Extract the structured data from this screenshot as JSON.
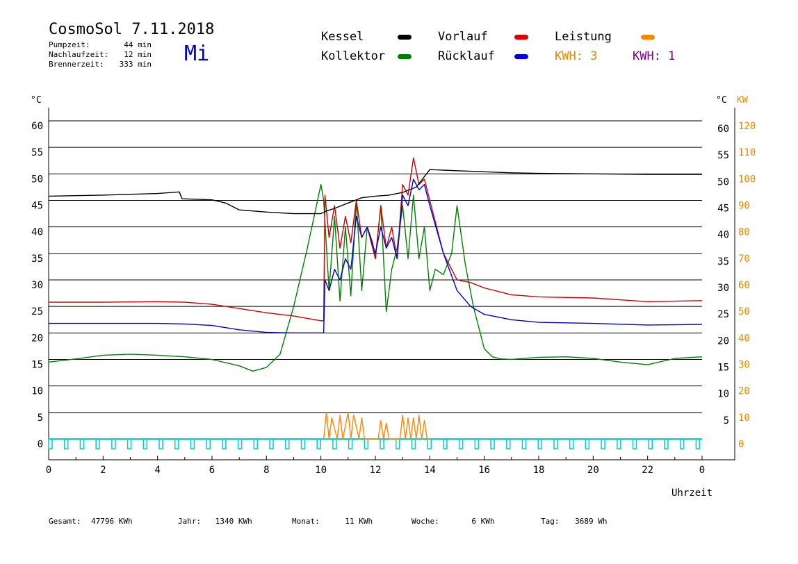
{
  "header": {
    "title": "CosmoSol 7.11.2018",
    "day": "Mi",
    "stats": [
      {
        "label": "Pumpzeit:",
        "value": "44 min"
      },
      {
        "label": "Nachlaufzeit:",
        "value": "12 min"
      },
      {
        "label": "Brennerzeit:",
        "value": "333 min"
      }
    ]
  },
  "legend": [
    {
      "label": "Kessel",
      "color": "#000000"
    },
    {
      "label": "Vorlauf",
      "color": "#dd0000"
    },
    {
      "label": "Leistung",
      "color": "#ff8800"
    },
    {
      "label": "Kollektor",
      "color": "#008000"
    },
    {
      "label": "Rücklauf",
      "color": "#0000dd"
    }
  ],
  "kwh_labels": [
    {
      "label": "KWH: 3",
      "color": "#e08a00"
    },
    {
      "label": "KWH: 1",
      "color": "#800080"
    }
  ],
  "colors": {
    "Kessel": "#000000",
    "Vorlauf": "#cc0000",
    "Rücklauf": "#0000cc",
    "Kollektor": "#008000",
    "Leistung": "#ff8800",
    "axis_right": "#e08a00",
    "day": "#0000cc",
    "baseline": "#00cccc",
    "purple": "#800080"
  },
  "chart_data": {
    "type": "line",
    "xlabel": "Uhrzeit",
    "ylabel_left": "°C",
    "ylabel_right_temp": "°C",
    "ylabel_right_power": "KW",
    "x_ticks": [
      "0",
      "2",
      "4",
      "6",
      "8",
      "10",
      "12",
      "14",
      "16",
      "18",
      "20",
      "22",
      "0"
    ],
    "y_ticks_left": [
      "0",
      "5",
      "10",
      "15",
      "20",
      "25",
      "30",
      "35",
      "40",
      "45",
      "50",
      "55",
      "60"
    ],
    "y_ticks_right_temp": [
      "5",
      "10",
      "15",
      "20",
      "25",
      "30",
      "35",
      "40",
      "45",
      "50",
      "55",
      "60"
    ],
    "y_ticks_right_power": [
      "0",
      "10",
      "20",
      "30",
      "40",
      "50",
      "60",
      "70",
      "80",
      "90",
      "100",
      "110",
      "120"
    ],
    "xlim": [
      0,
      24
    ],
    "ylim": [
      0,
      60
    ],
    "grid": "horizontal",
    "series": [
      {
        "name": "Kessel",
        "x": [
          0,
          2,
          4,
          4.8,
          4.9,
          6,
          6.5,
          7,
          8,
          9,
          10,
          10.2,
          10.5,
          11,
          11.5,
          12,
          12.5,
          13,
          13.5,
          14,
          15,
          16,
          17,
          18,
          20,
          22,
          24
        ],
        "y": [
          45.8,
          46,
          46.3,
          46.6,
          45.3,
          45.1,
          44.5,
          43.2,
          42.8,
          42.5,
          42.5,
          43,
          43.5,
          44.5,
          45.5,
          45.8,
          46,
          46.5,
          47.5,
          50.8,
          50.6,
          50.4,
          50.2,
          50.1,
          50,
          49.9,
          49.9
        ]
      },
      {
        "name": "Vorlauf",
        "x": [
          0,
          2,
          4,
          5,
          6,
          7,
          8,
          9,
          10,
          10.1,
          10.15,
          10.3,
          10.5,
          10.7,
          10.9,
          11.1,
          11.3,
          11.5,
          11.7,
          12,
          12.2,
          12.4,
          12.6,
          12.8,
          13,
          13.2,
          13.4,
          13.6,
          13.8,
          14,
          14.5,
          15,
          15.5,
          16,
          17,
          18,
          20,
          22,
          24
        ],
        "y": [
          25.8,
          25.8,
          25.9,
          25.8,
          25.4,
          24.6,
          23.8,
          23.2,
          22.3,
          22.3,
          46,
          38,
          44,
          36,
          42,
          37,
          45,
          38,
          40,
          34,
          44,
          36,
          40,
          34,
          48,
          46,
          53,
          48,
          49,
          45,
          35,
          30,
          29.5,
          28.5,
          27.2,
          26.8,
          26.6,
          25.9,
          26.1
        ]
      },
      {
        "name": "Rücklauf",
        "x": [
          0,
          2,
          4,
          5,
          6,
          7,
          8,
          9,
          10,
          10.1,
          10.15,
          10.3,
          10.5,
          10.7,
          10.9,
          11.1,
          11.3,
          11.5,
          11.7,
          12,
          12.2,
          12.4,
          12.6,
          12.8,
          13,
          13.2,
          13.4,
          13.6,
          13.8,
          14,
          14.5,
          15,
          15.5,
          16,
          17,
          18,
          20,
          22,
          24
        ],
        "y": [
          21.8,
          21.8,
          21.8,
          21.7,
          21.4,
          20.6,
          20.1,
          20,
          20,
          20,
          30,
          28,
          32,
          30,
          34,
          32,
          42,
          38,
          40,
          35,
          40,
          36,
          38,
          34,
          46,
          44,
          49,
          47,
          48,
          44,
          35,
          28,
          25,
          23.5,
          22.5,
          22,
          21.8,
          21.5,
          21.6
        ]
      },
      {
        "name": "Kollektor",
        "x": [
          0,
          1,
          2,
          3,
          4,
          5,
          6,
          7,
          7.5,
          8,
          8.5,
          9,
          9.5,
          10,
          10.1,
          10.3,
          10.5,
          10.7,
          10.9,
          11.1,
          11.3,
          11.5,
          11.7,
          11.9,
          12,
          12.2,
          12.4,
          12.6,
          12.8,
          13,
          13.2,
          13.4,
          13.6,
          13.8,
          14,
          14.2,
          14.5,
          14.8,
          15,
          15.3,
          15.6,
          16,
          16.3,
          16.6,
          17,
          18,
          19,
          20,
          21,
          22,
          23,
          24
        ],
        "y": [
          14.5,
          15.1,
          15.8,
          16,
          15.8,
          15.5,
          15,
          13.8,
          12.8,
          13.5,
          16,
          25,
          36,
          48,
          45,
          28,
          42,
          26,
          40,
          27,
          45,
          28,
          40,
          37,
          34,
          44,
          24,
          32,
          36,
          44,
          34,
          46,
          34,
          40,
          28,
          32,
          31,
          35,
          44,
          33,
          25,
          17,
          15.5,
          15.1,
          15,
          15.4,
          15.5,
          15.2,
          14.5,
          14,
          15.2,
          15.5
        ]
      },
      {
        "name": "Leistung",
        "axis": "right_power",
        "x": [
          10.1,
          10.2,
          10.3,
          10.4,
          10.6,
          10.7,
          10.8,
          11,
          11.1,
          11.2,
          11.4,
          11.5,
          11.6,
          12.1,
          12.2,
          12.3,
          12.4,
          12.5,
          12.9,
          13,
          13.1,
          13.2,
          13.3,
          13.4,
          13.5,
          13.6,
          13.7,
          13.8,
          13.9,
          14
        ],
        "y": [
          0,
          10,
          0,
          8,
          0,
          9,
          0,
          10,
          0,
          9,
          0,
          8,
          0,
          0,
          7,
          0,
          6,
          0,
          0,
          9,
          0,
          8,
          0,
          8,
          0,
          9,
          0,
          7,
          0,
          0
        ]
      }
    ]
  },
  "footer": [
    {
      "label": "Gesamt:",
      "value": "47796 KWh"
    },
    {
      "label": "Jahr:",
      "value": "1340 KWh"
    },
    {
      "label": "Monat:",
      "value": "11 KWh"
    },
    {
      "label": "Woche:",
      "value": "6 KWh"
    },
    {
      "label": "Tag:",
      "value": "3689 Wh"
    }
  ]
}
